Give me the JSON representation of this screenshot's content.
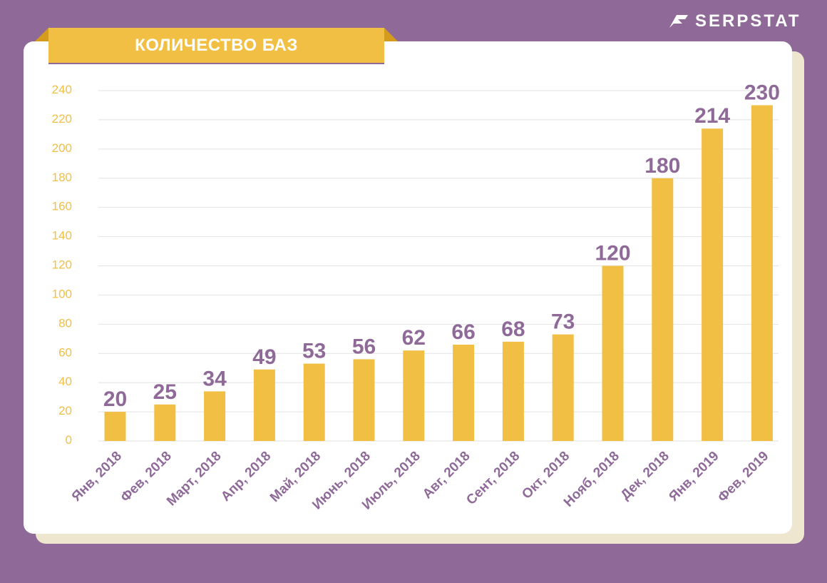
{
  "header": {
    "title": "КОЛИЧЕСТВО БАЗ",
    "brand": "SERPSTAT"
  },
  "colors": {
    "background": "#8f6a99",
    "bar": "#f2bf45",
    "tick_label": "#f2bf45",
    "value_label": "#8f6a99",
    "category_label": "#8f6a99",
    "grid": "#e2e2e2"
  },
  "chart_data": {
    "type": "bar",
    "title": "КОЛИЧЕСТВО БАЗ",
    "xlabel": "",
    "ylabel": "",
    "ylim": [
      0,
      240
    ],
    "yticks": [
      0,
      20,
      40,
      60,
      80,
      100,
      120,
      140,
      160,
      180,
      200,
      220,
      240
    ],
    "grid": true,
    "legend": "none",
    "categories": [
      "Янв, 2018",
      "Фев, 2018",
      "Март, 2018",
      "Апр, 2018",
      "Май, 2018",
      "Июнь, 2018",
      "Июль, 2018",
      "Авг, 2018",
      "Сент, 2018",
      "Окт, 2018",
      "Нояб, 2018",
      "Дек, 2018",
      "Янв, 2019",
      "Фев, 2019"
    ],
    "values": [
      20,
      25,
      34,
      49,
      53,
      56,
      62,
      66,
      68,
      73,
      120,
      180,
      214,
      230
    ]
  }
}
